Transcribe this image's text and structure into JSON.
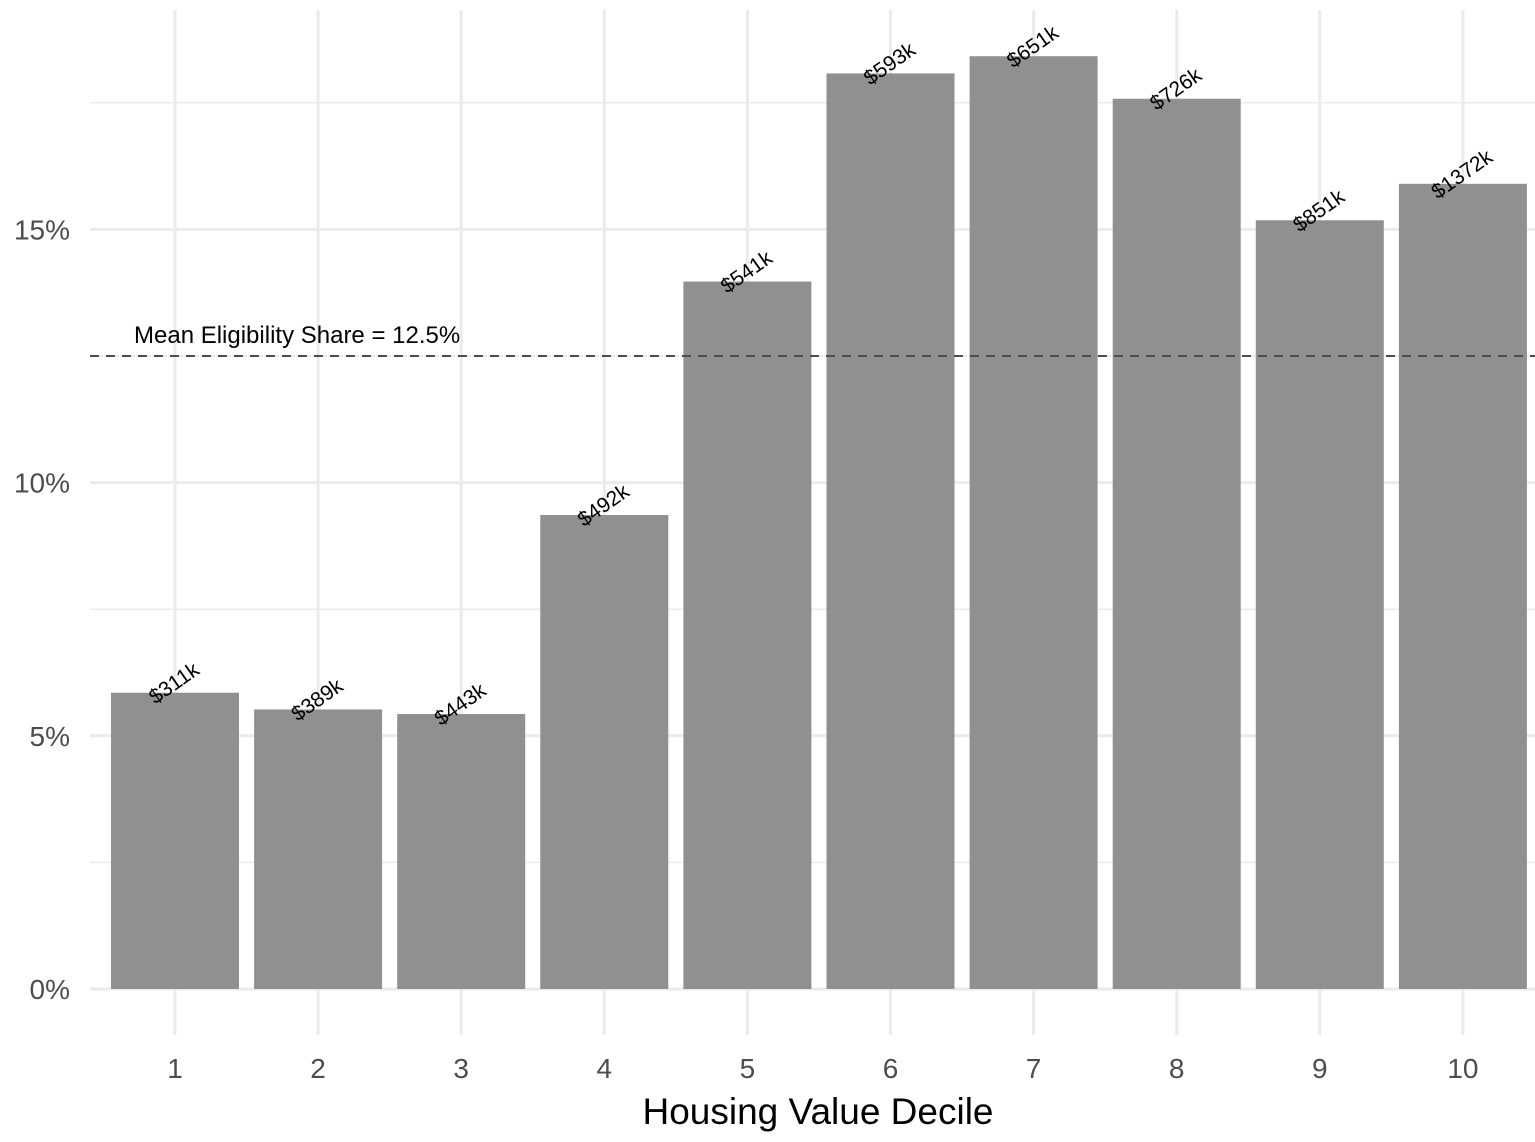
{
  "chart_data": {
    "type": "bar",
    "categories": [
      "1",
      "2",
      "3",
      "4",
      "5",
      "6",
      "7",
      "8",
      "9",
      "10"
    ],
    "values": [
      5.85,
      5.52,
      5.43,
      9.36,
      13.97,
      18.08,
      18.42,
      17.58,
      15.18,
      15.9
    ],
    "value_unit": "%",
    "bar_labels": [
      "$311k",
      "$389k",
      "$443k",
      "$492k",
      "$541k",
      "$593k",
      "$651k",
      "$726k",
      "$851k",
      "$1372k"
    ],
    "title": "",
    "xlabel": "Housing Value Decile",
    "ylabel": "",
    "ylim": [
      0,
      19
    ],
    "yticks": [
      0,
      5,
      10,
      15
    ],
    "ytick_labels": [
      "0%",
      "5%",
      "10%",
      "15%"
    ],
    "grid": true,
    "reference_line": {
      "value": 12.5,
      "label": "Mean Eligibility Share = 12.5%",
      "style": "dashed"
    },
    "colors": {
      "bar": "#8c8c8c",
      "grid": "#ebebeb",
      "reference_line": "#4d4d4d"
    }
  }
}
